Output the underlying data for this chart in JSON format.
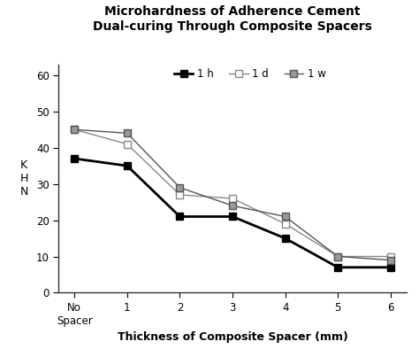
{
  "title": "Microhardness of Adherence Cement\nDual-curing Through Composite Spacers",
  "xlabel": "Thickness of Composite Spacer (mm)",
  "ylabel": "K\nH\nN",
  "x_labels": [
    "No\nSpacer",
    "1",
    "2",
    "3",
    "4",
    "5",
    "6"
  ],
  "x_values": [
    0,
    1,
    2,
    3,
    4,
    5,
    6
  ],
  "series": {
    "1 h": {
      "values": [
        37,
        35,
        21,
        21,
        15,
        7,
        7
      ],
      "color": "#000000",
      "marker": "s",
      "markersize": 6,
      "linewidth": 2.0,
      "markerfacecolor": "#000000"
    },
    "1 d": {
      "values": [
        45,
        41,
        27,
        26,
        19,
        10,
        10
      ],
      "color": "#888888",
      "marker": "s",
      "markersize": 6,
      "linewidth": 1.0,
      "markerfacecolor": "#ffffff"
    },
    "1 w": {
      "values": [
        45,
        44,
        29,
        24,
        21,
        10,
        9
      ],
      "color": "#555555",
      "marker": "s",
      "markersize": 6,
      "linewidth": 1.0,
      "markerfacecolor": "#999999"
    }
  },
  "ylim": [
    0,
    63
  ],
  "yticks": [
    0,
    10,
    20,
    30,
    40,
    50,
    60
  ],
  "background_color": "#ffffff",
  "plot_bg": "#ffffff",
  "title_fontsize": 10,
  "label_fontsize": 9,
  "tick_fontsize": 8.5,
  "legend_fontsize": 8.5
}
